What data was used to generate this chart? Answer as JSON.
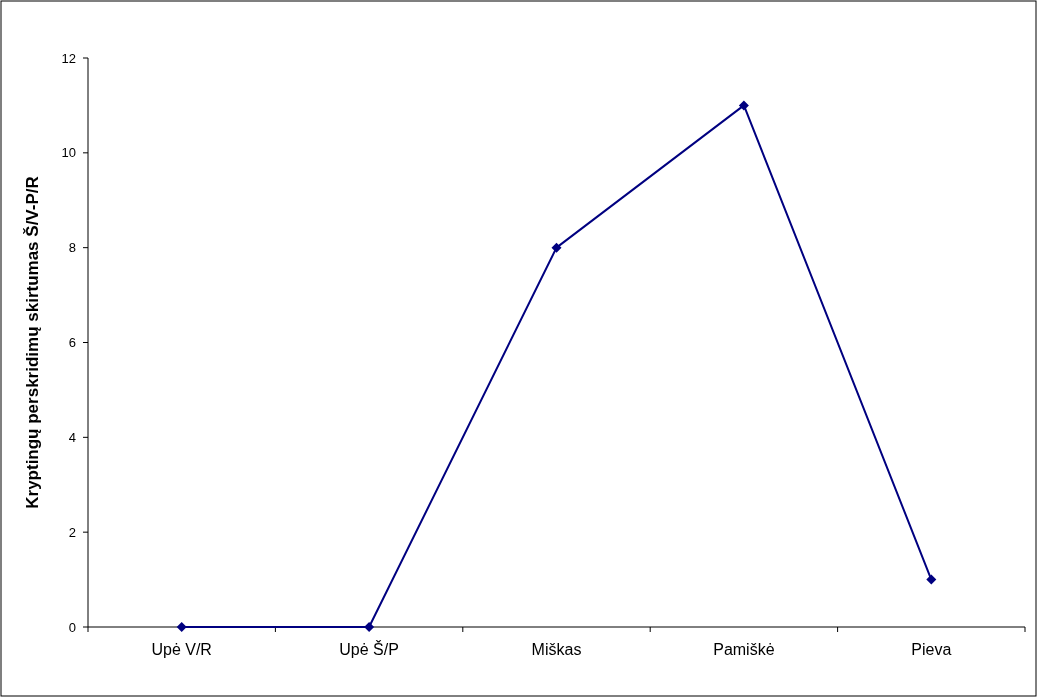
{
  "chart_data": {
    "type": "line",
    "ylabel": "Kryptingų perskridimų skirtumas Š/V-P/R",
    "categories": [
      "Upė V/R",
      "Upė Š/P",
      "Miškas",
      "Pamiškė",
      "Pieva"
    ],
    "series": [
      {
        "color": "#000080",
        "values": [
          0,
          0,
          8,
          11,
          1
        ]
      }
    ],
    "ylim": [
      0,
      12
    ],
    "yticks": [
      0,
      2,
      4,
      6,
      8,
      10,
      12
    ],
    "marker": "diamond",
    "line_style": "solid"
  }
}
